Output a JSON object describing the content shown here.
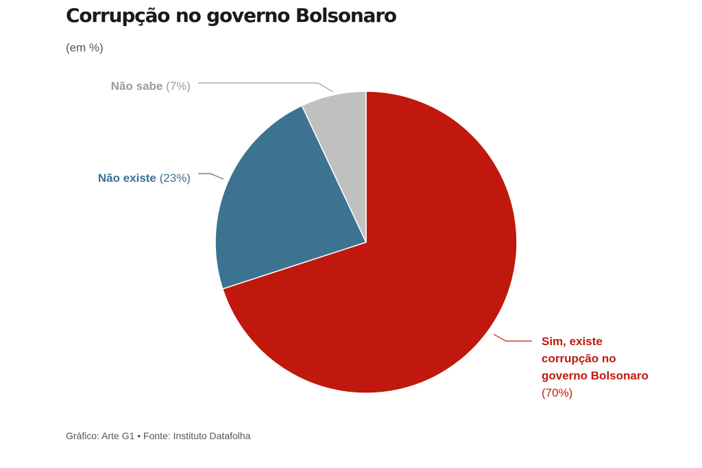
{
  "chart_data": {
    "type": "pie",
    "title": "Corrupção no governo Bolsonaro",
    "subtitle": "(em %)",
    "slices": [
      {
        "name": "Sim, existe corrupção no governo Bolsonaro",
        "label_lines": [
          "Sim, existe",
          "corrupção no",
          "governo Bolsonaro"
        ],
        "value_label": "(70%)",
        "value": 70,
        "color": "#c0180c"
      },
      {
        "name": "Não existe",
        "label_lines": [
          "Não existe"
        ],
        "value_label": "(23%)",
        "value": 23,
        "color": "#3c7390"
      },
      {
        "name": "Não sabe",
        "label_lines": [
          "Não sabe"
        ],
        "value_label": "(7%)",
        "value": 7,
        "color": "#c0c0c0"
      }
    ]
  },
  "footer": {
    "source": "Gráfico: Arte G1 • Fonte: Instituto Datafolha"
  }
}
